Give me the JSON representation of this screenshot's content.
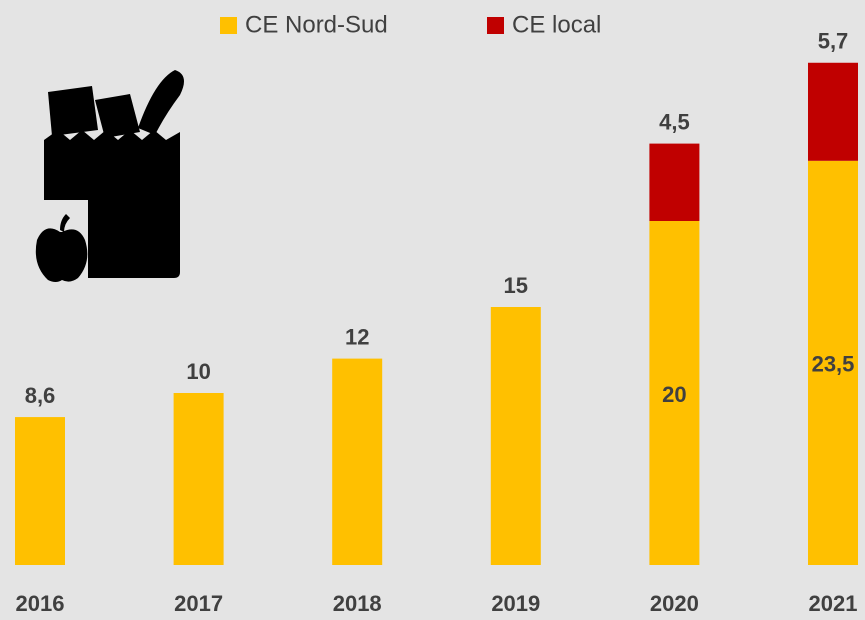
{
  "chart_data": {
    "type": "stacked_bar",
    "categories": [
      "2016",
      "2017",
      "2018",
      "2019",
      "2020",
      "2021"
    ],
    "series": [
      {
        "name": "CE Nord-Sud",
        "color": "#FFC000",
        "values": [
          8.6,
          10,
          12,
          15,
          20,
          23.5
        ],
        "value_labels": [
          "8,6",
          "10",
          "12",
          "15",
          "20",
          "23,5"
        ]
      },
      {
        "name": "CE local",
        "color": "#C00000",
        "values": [
          null,
          null,
          null,
          null,
          4.5,
          5.7
        ],
        "value_labels": [
          null,
          null,
          null,
          null,
          "4,5",
          "5,7"
        ]
      }
    ],
    "ylim": [
      0,
      30
    ],
    "legend": "top"
  }
}
